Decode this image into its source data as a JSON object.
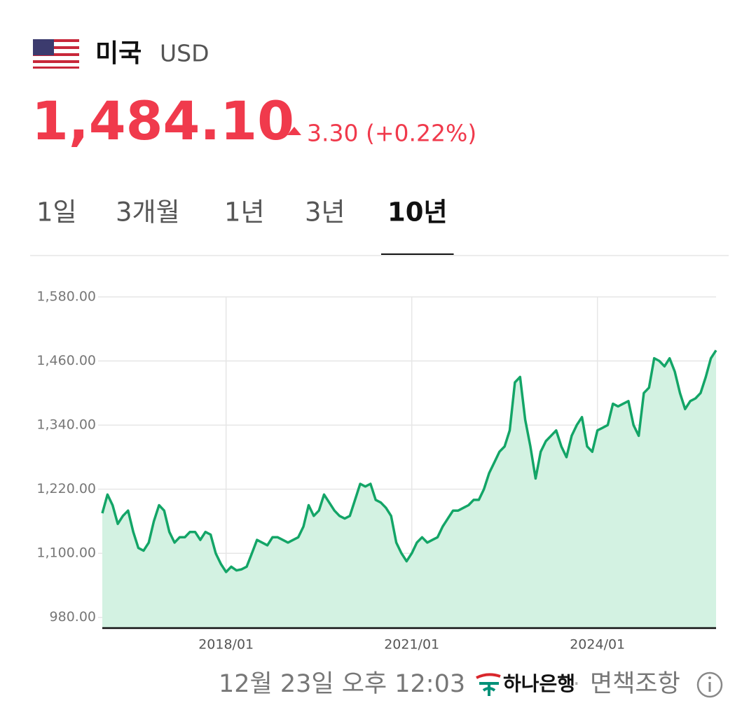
{
  "header": {
    "country": "미국",
    "currency": "USD",
    "price": "1,484.10",
    "change": "3.30 (+0.22%)"
  },
  "tabs": [
    "1일",
    "3개월",
    "1년",
    "3년",
    "10년"
  ],
  "selected_tab": 4,
  "chart_data": {
    "type": "area",
    "x": [
      "2016/01",
      "2016/02",
      "2016/03",
      "2016/04",
      "2016/05",
      "2016/06",
      "2016/07",
      "2016/08",
      "2016/09",
      "2016/10",
      "2016/11",
      "2016/12",
      "2017/01",
      "2017/02",
      "2017/03",
      "2017/04",
      "2017/05",
      "2017/06",
      "2017/07",
      "2017/08",
      "2017/09",
      "2017/10",
      "2017/11",
      "2017/12",
      "2018/01",
      "2018/02",
      "2018/03",
      "2018/04",
      "2018/05",
      "2018/06",
      "2018/07",
      "2018/08",
      "2018/09",
      "2018/10",
      "2018/11",
      "2018/12",
      "2019/01",
      "2019/02",
      "2019/03",
      "2019/04",
      "2019/05",
      "2019/06",
      "2019/07",
      "2019/08",
      "2019/09",
      "2019/10",
      "2019/11",
      "2019/12",
      "2020/01",
      "2020/02",
      "2020/03",
      "2020/04",
      "2020/05",
      "2020/06",
      "2020/07",
      "2020/08",
      "2020/09",
      "2020/10",
      "2020/11",
      "2020/12",
      "2021/01",
      "2021/02",
      "2021/03",
      "2021/04",
      "2021/05",
      "2021/06",
      "2021/07",
      "2021/08",
      "2021/09",
      "2021/10",
      "2021/11",
      "2021/12",
      "2022/01",
      "2022/02",
      "2022/03",
      "2022/04",
      "2022/05",
      "2022/06",
      "2022/07",
      "2022/08",
      "2022/09",
      "2022/10",
      "2022/11",
      "2022/12",
      "2023/01",
      "2023/02",
      "2023/03",
      "2023/04",
      "2023/05",
      "2023/06",
      "2023/07",
      "2023/08",
      "2023/09",
      "2023/10",
      "2023/11",
      "2023/12",
      "2024/01",
      "2024/02",
      "2024/03",
      "2024/04",
      "2024/05",
      "2024/06",
      "2024/07",
      "2024/08",
      "2024/09",
      "2024/10",
      "2024/11",
      "2024/12",
      "2025/01",
      "2025/02",
      "2025/03",
      "2025/04",
      "2025/05",
      "2025/06",
      "2025/07",
      "2025/08",
      "2025/09",
      "2025/10",
      "2025/11",
      "2025/12"
    ],
    "series": [
      {
        "color": "#13a567",
        "fill": "#d3f2e2",
        "values": [
          1175,
          1210,
          1190,
          1155,
          1170,
          1180,
          1140,
          1110,
          1105,
          1120,
          1160,
          1190,
          1180,
          1140,
          1120,
          1130,
          1130,
          1140,
          1140,
          1125,
          1140,
          1135,
          1100,
          1080,
          1065,
          1075,
          1068,
          1070,
          1075,
          1100,
          1125,
          1120,
          1115,
          1130,
          1130,
          1125,
          1120,
          1125,
          1130,
          1150,
          1190,
          1170,
          1180,
          1210,
          1195,
          1180,
          1170,
          1165,
          1170,
          1200,
          1230,
          1225,
          1230,
          1200,
          1195,
          1185,
          1170,
          1120,
          1100,
          1085,
          1100,
          1120,
          1130,
          1120,
          1125,
          1130,
          1150,
          1165,
          1180,
          1180,
          1185,
          1190,
          1200,
          1200,
          1220,
          1250,
          1270,
          1290,
          1300,
          1330,
          1420,
          1430,
          1350,
          1300,
          1240,
          1290,
          1310,
          1320,
          1330,
          1300,
          1280,
          1320,
          1340,
          1355,
          1300,
          1290,
          1330,
          1335,
          1340,
          1380,
          1375,
          1380,
          1385,
          1340,
          1320,
          1400,
          1410,
          1465,
          1460,
          1450,
          1465,
          1440,
          1400,
          1370,
          1385,
          1390,
          1400,
          1430,
          1465,
          1480
        ]
      }
    ],
    "ylim": [
      960,
      1580
    ],
    "yticks": [
      {
        "value": 980,
        "label": "980.00"
      },
      {
        "value": 1100,
        "label": "1,100.00"
      },
      {
        "value": 1220,
        "label": "1,220.00"
      },
      {
        "value": 1340,
        "label": "1,340.00"
      },
      {
        "value": 1460,
        "label": "1,460.00"
      },
      {
        "value": 1580,
        "label": "1,580.00"
      }
    ],
    "xticks": [
      "2018/01",
      "2021/01",
      "2024/01"
    ],
    "grid": true
  },
  "footer": {
    "timestamp": "12월 23일 오후 12:03",
    "bank": "하나은행",
    "separator": "·",
    "disclaimer": "면책조항"
  }
}
